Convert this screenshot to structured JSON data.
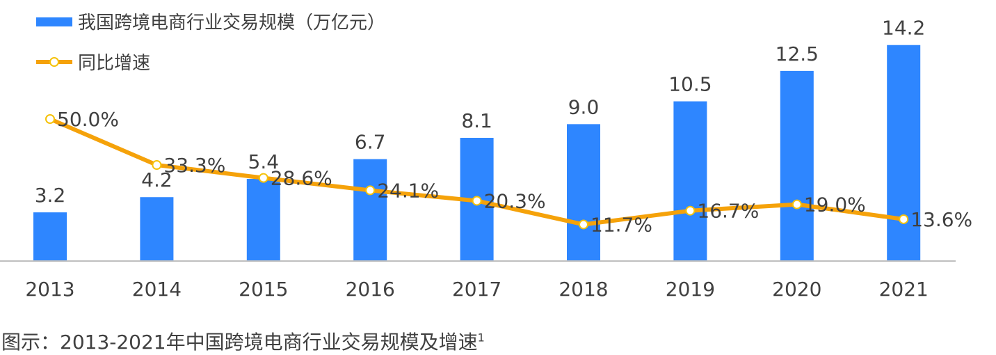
{
  "chart_data": {
    "type": "bar",
    "categories": [
      "2013",
      "2014",
      "2015",
      "2016",
      "2017",
      "2018",
      "2019",
      "2020",
      "2021"
    ],
    "series": [
      {
        "name": "我国跨境电商行业交易规模（万亿元）",
        "kind": "bar",
        "values": [
          3.2,
          4.2,
          5.4,
          6.7,
          8.1,
          9.0,
          10.5,
          12.5,
          14.2
        ],
        "labels": [
          "3.2",
          "4.2",
          "5.4",
          "6.7",
          "8.1",
          "9.0",
          "10.5",
          "12.5",
          "14.2"
        ]
      },
      {
        "name": "同比增速",
        "kind": "line",
        "values": [
          50.0,
          33.3,
          28.6,
          24.1,
          20.3,
          11.7,
          16.7,
          19.0,
          13.6
        ],
        "labels": [
          "50.0%",
          "33.3%",
          "28.6%",
          "24.1%",
          "20.3%",
          "11.7%",
          "16.7%",
          "19.0%",
          "13.6%"
        ]
      }
    ],
    "legend_position": "top-left",
    "grid": false
  },
  "colors": {
    "bar": "#2E86FF",
    "line": "#F5A20A",
    "marker_fill": "#FFFFFF",
    "marker_stroke": "#F5C20A",
    "axis": "#BFBFBF"
  },
  "caption": {
    "text": "图示：2013-2021年中国跨境电商行业交易规模及增速",
    "footnote": "1"
  }
}
